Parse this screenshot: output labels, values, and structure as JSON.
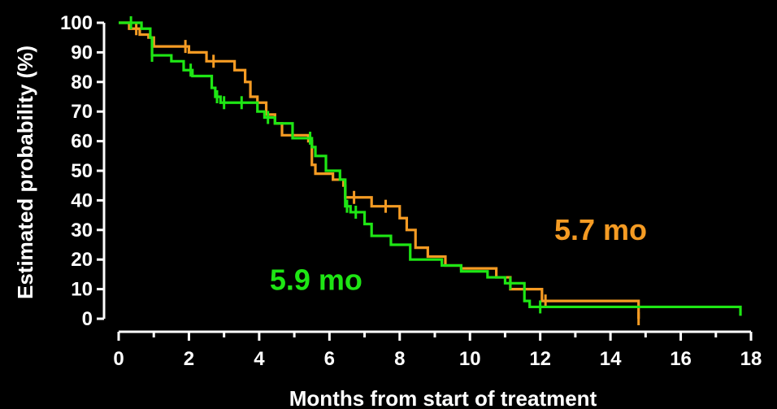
{
  "chart_data": {
    "type": "line",
    "title": "",
    "xlabel": "Months from start of treatment",
    "ylabel": "Estimated probability (%)",
    "xlim": [
      0,
      18
    ],
    "ylim": [
      0,
      100
    ],
    "x_ticks": [
      "0",
      "2",
      "4",
      "6",
      "8",
      "10",
      "12",
      "14",
      "16",
      "18"
    ],
    "y_ticks": [
      "0",
      "10",
      "20",
      "30",
      "40",
      "50",
      "60",
      "70",
      "80",
      "90",
      "100"
    ],
    "grid": false,
    "legend": "none",
    "series": [
      {
        "color": "#f59b23",
        "step": true,
        "points": [
          [
            0,
            100
          ],
          [
            0.3,
            98
          ],
          [
            0.6,
            96
          ],
          [
            0.85,
            95
          ],
          [
            1.0,
            92
          ],
          [
            2.0,
            90
          ],
          [
            2.5,
            87
          ],
          [
            3.3,
            84
          ],
          [
            3.6,
            80
          ],
          [
            3.75,
            75
          ],
          [
            3.95,
            73
          ],
          [
            4.2,
            69
          ],
          [
            4.45,
            66
          ],
          [
            4.65,
            62
          ],
          [
            5.4,
            60
          ],
          [
            5.5,
            52
          ],
          [
            5.6,
            49
          ],
          [
            6.1,
            47
          ],
          [
            6.4,
            45
          ],
          [
            6.45,
            41
          ],
          [
            7.2,
            38
          ],
          [
            8.0,
            34
          ],
          [
            8.2,
            30
          ],
          [
            8.45,
            24
          ],
          [
            8.8,
            21
          ],
          [
            9.3,
            18
          ],
          [
            9.75,
            17
          ],
          [
            10.75,
            14
          ],
          [
            11.15,
            10
          ],
          [
            12.05,
            6
          ],
          [
            14.8,
            6
          ],
          [
            14.8,
            0
          ]
        ],
        "censor_x": [
          0.5,
          1.9,
          2.7,
          6.7,
          7.6,
          12.15,
          14.8
        ]
      },
      {
        "color": "#1ee614",
        "step": true,
        "points": [
          [
            0,
            100
          ],
          [
            0.65,
            98
          ],
          [
            0.9,
            95
          ],
          [
            0.95,
            89
          ],
          [
            1.5,
            87
          ],
          [
            1.85,
            84
          ],
          [
            2.1,
            82
          ],
          [
            2.65,
            78
          ],
          [
            2.75,
            75
          ],
          [
            2.9,
            73
          ],
          [
            3.95,
            70
          ],
          [
            4.15,
            68
          ],
          [
            4.45,
            66
          ],
          [
            4.95,
            61
          ],
          [
            5.5,
            58
          ],
          [
            5.6,
            55
          ],
          [
            5.9,
            50
          ],
          [
            6.3,
            47
          ],
          [
            6.45,
            38
          ],
          [
            6.6,
            36
          ],
          [
            7.0,
            32
          ],
          [
            7.2,
            28
          ],
          [
            7.75,
            25
          ],
          [
            8.3,
            20
          ],
          [
            9.2,
            18
          ],
          [
            9.75,
            16
          ],
          [
            10.5,
            14
          ],
          [
            11.0,
            12
          ],
          [
            11.55,
            6
          ],
          [
            11.7,
            4
          ],
          [
            17.7,
            4
          ],
          [
            17.7,
            1
          ]
        ],
        "censor_x": [
          0.35,
          0.95,
          2.05,
          2.8,
          3.0,
          3.5,
          4.25,
          5.45,
          6.5,
          6.75,
          11.15,
          12.0
        ]
      }
    ],
    "annotations": [
      {
        "text": "5.7 mo",
        "color": "#f59b23",
        "x": 12.4,
        "y": 30
      },
      {
        "text": "5.9 mo",
        "color": "#1ee614",
        "x": 4.3,
        "y": 13
      }
    ]
  }
}
